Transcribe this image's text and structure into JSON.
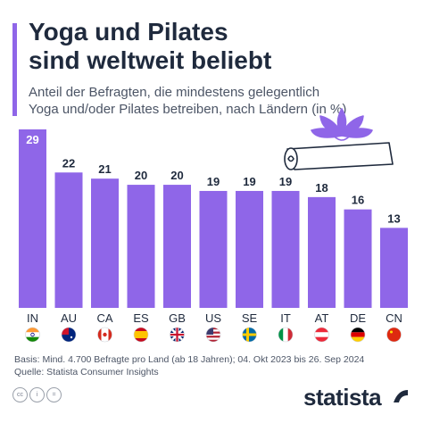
{
  "header": {
    "title_line1": "Yoga und Pilates",
    "title_line2": "sind weltweit beliebt",
    "subtitle_line1": "Anteil der Befragten, die mindestens gelegentlich",
    "subtitle_line2": "Yoga und/oder Pilates betreiben, nach Ländern (in %)"
  },
  "colors": {
    "bar": "#8f66e8",
    "label_inside": "#ffffff",
    "label_outside": "#1f2a3d",
    "accent": "#8f66e8"
  },
  "chart_data": {
    "type": "bar",
    "categories": [
      "IN",
      "AU",
      "CA",
      "ES",
      "GB",
      "US",
      "SE",
      "IT",
      "AT",
      "DE",
      "CN"
    ],
    "values": [
      29,
      22,
      21,
      20,
      20,
      19,
      19,
      19,
      18,
      16,
      13
    ],
    "title": "Yoga und Pilates sind weltweit beliebt",
    "ylim": [
      0,
      29
    ],
    "grid": false
  },
  "flags": [
    "india-flag",
    "australia-flag",
    "canada-flag",
    "spain-flag",
    "uk-flag",
    "usa-flag",
    "sweden-flag",
    "italy-flag",
    "austria-flag",
    "germany-flag",
    "china-flag"
  ],
  "footer": {
    "basis": "Basis: Mind. 4.700 Befragte pro Land (ab 18 Jahren); 04. Okt 2023 bis 26. Sep 2024",
    "source": "Quelle: Statista Consumer Insights"
  },
  "brand": {
    "name": "statista"
  }
}
